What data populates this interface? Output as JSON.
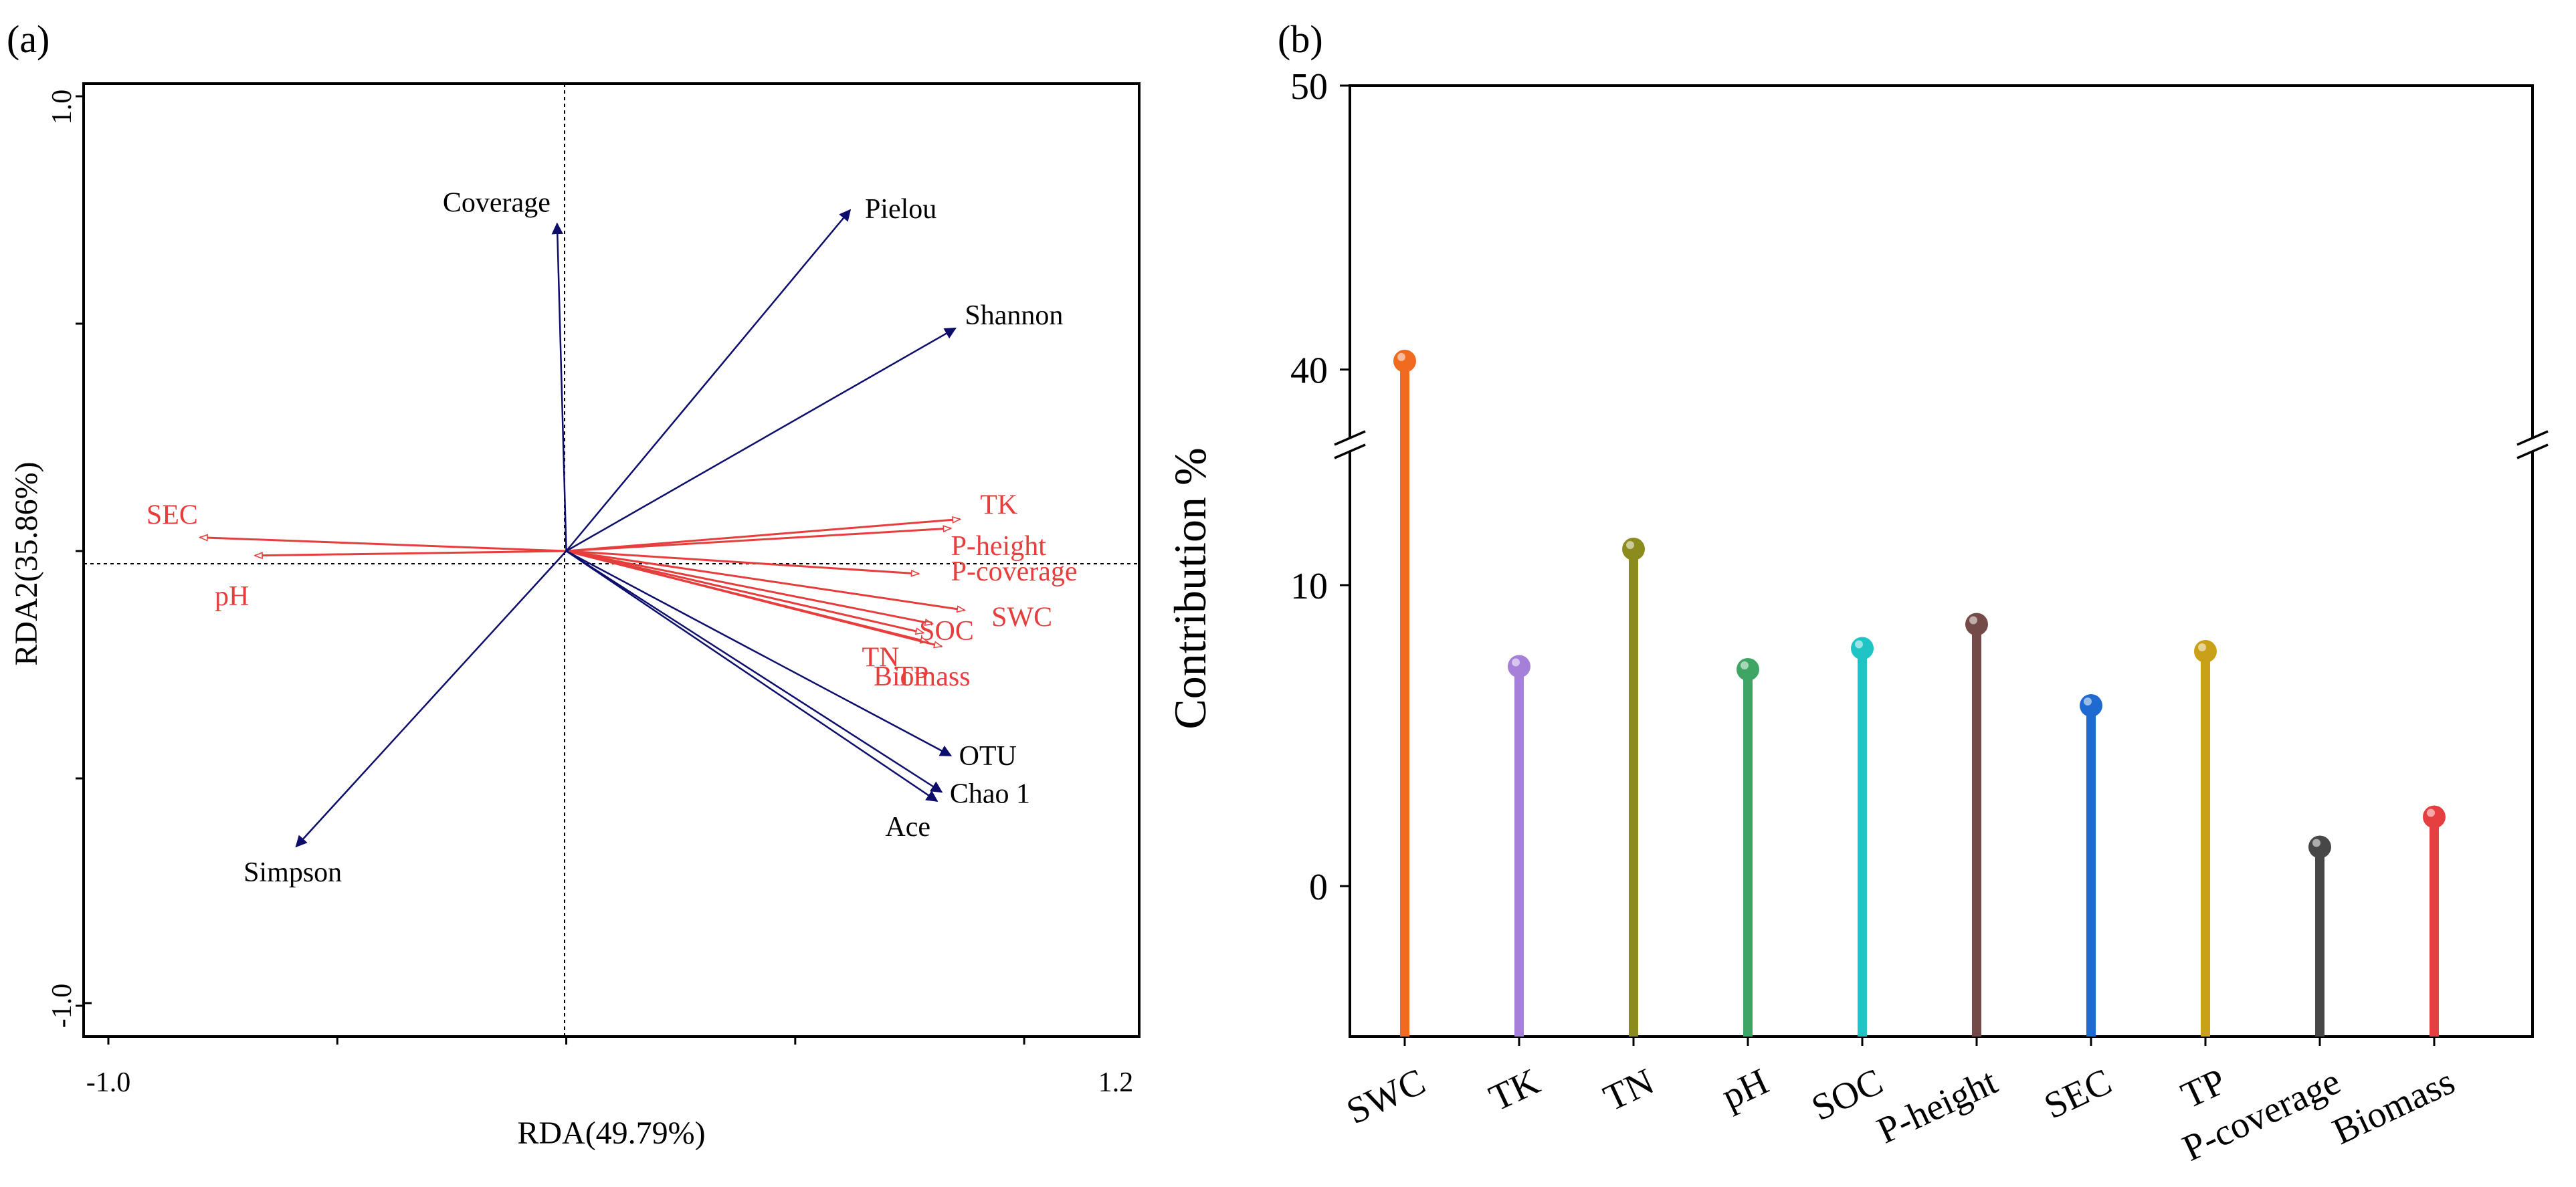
{
  "chart_data": [
    {
      "panel_label": "(a)",
      "type": "scatter",
      "subtype": "rda-biplot",
      "xlabel": "RDA(49.79%)",
      "ylabel": "RDA2(35.86%)",
      "xlim": [
        -1.0,
        1.2
      ],
      "ylim": [
        -1.0,
        1.0
      ],
      "xtick_labels": [
        "-1.0",
        "1.2"
      ],
      "ytick_labels": [
        "1.0",
        "-1.0"
      ],
      "response_vectors": [
        {
          "name": "Coverage",
          "x": -0.02,
          "y": 0.72
        },
        {
          "name": "Pielou",
          "x": 0.62,
          "y": 0.75
        },
        {
          "name": "Shannon",
          "x": 0.85,
          "y": 0.49
        },
        {
          "name": "OTU",
          "x": 0.84,
          "y": -0.45
        },
        {
          "name": "Chao 1",
          "x": 0.82,
          "y": -0.53
        },
        {
          "name": "Ace",
          "x": 0.81,
          "y": -0.55
        },
        {
          "name": "Simpson",
          "x": -0.59,
          "y": -0.65
        }
      ],
      "explanatory_vectors": [
        {
          "name": "SEC",
          "x": -0.8,
          "y": 0.03
        },
        {
          "name": "pH",
          "x": -0.68,
          "y": -0.01
        },
        {
          "name": "TK",
          "x": 0.86,
          "y": 0.07
        },
        {
          "name": "P-height",
          "x": 0.84,
          "y": 0.05
        },
        {
          "name": "P-coverage",
          "x": 0.77,
          "y": -0.05
        },
        {
          "name": "SWC",
          "x": 0.87,
          "y": -0.13
        },
        {
          "name": "SOC",
          "x": 0.8,
          "y": -0.16
        },
        {
          "name": "TN",
          "x": 0.78,
          "y": -0.18
        },
        {
          "name": "TP",
          "x": 0.79,
          "y": -0.2
        },
        {
          "name": "Biomass",
          "x": 0.82,
          "y": -0.21
        }
      ]
    },
    {
      "panel_label": "(b)",
      "type": "bar",
      "subtype": "lollipop-broken-axis",
      "ylabel": "Contribution %",
      "categories": [
        "SWC",
        "TK",
        "TN",
        "pH",
        "SOC",
        "P-height",
        "SEC",
        "TP",
        "P-coverage",
        "Biomass"
      ],
      "values": [
        40.3,
        7.3,
        11.2,
        7.2,
        7.9,
        8.7,
        6.0,
        7.8,
        1.3,
        2.3
      ],
      "colors": [
        "#f06a1f",
        "#a67fd8",
        "#8c8c1e",
        "#3fa565",
        "#1fc5c5",
        "#734a47",
        "#1e6ad0",
        "#c9a018",
        "#474747",
        "#e63f42"
      ],
      "yticks": [
        0,
        10,
        40,
        50
      ],
      "ytick_labels": [
        "0",
        "10",
        "40",
        "50"
      ],
      "ylim": [
        -5,
        50
      ],
      "axis_break": [
        15,
        37
      ],
      "lower_segment": [
        -5,
        15
      ],
      "upper_segment": [
        37,
        50
      ]
    }
  ]
}
